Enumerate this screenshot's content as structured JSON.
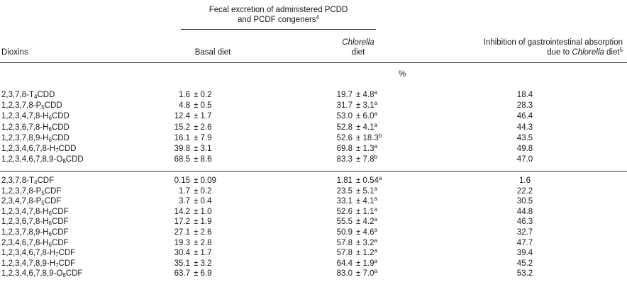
{
  "header": {
    "fecal_group_line1": "Fecal excretion of administered PCDD",
    "fecal_group_line2": "and PCDF congeners",
    "fecal_group_footnote": "4",
    "col_dioxins": "Dioxins",
    "col_basal": "Basal diet",
    "col_chlorella_line1": "Chlorella",
    "col_chlorella_line2": "diet",
    "col_inhibition_line1": "Inhibition of gastrointestinal absorption",
    "col_inhibition_line2_prefix": "due to ",
    "col_inhibition_line2_italic": "Chlorella",
    "col_inhibition_line2_suffix": " diet",
    "col_inhibition_footnote": "5",
    "unit": "%"
  },
  "pcdd_rows": [
    {
      "pre": "2,3,7,8-T",
      "sub": "4",
      "post": "CDD",
      "basal_mean": "1.6",
      "basal_sd": "± 0.2",
      "chl_mean": "19.7",
      "chl_sd": "± 4.8",
      "chl_sup": "a",
      "inhibition": "18.4"
    },
    {
      "pre": "1,2,3,7,8-P",
      "sub": "5",
      "post": "CDD",
      "basal_mean": "4.8",
      "basal_sd": "± 0.5",
      "chl_mean": "31.7",
      "chl_sd": "± 3.1",
      "chl_sup": "a",
      "inhibition": "28.3"
    },
    {
      "pre": "1,2,3,4,7,8-H",
      "sub": "6",
      "post": "CDD",
      "basal_mean": "12.4",
      "basal_sd": "± 1.7",
      "chl_mean": "53.0",
      "chl_sd": "± 6.0",
      "chl_sup": "a",
      "inhibition": "46.4"
    },
    {
      "pre": "1,2,3,6,7,8-H",
      "sub": "6",
      "post": "CDD",
      "basal_mean": "15.2",
      "basal_sd": "± 2.6",
      "chl_mean": "52.8",
      "chl_sd": "± 4.1",
      "chl_sup": "a",
      "inhibition": "44.3"
    },
    {
      "pre": "1,2,3,7,8,9-H",
      "sub": "6",
      "post": "CDD",
      "basal_mean": "16.1",
      "basal_sd": "± 7.9",
      "chl_mean": "52.6",
      "chl_sd": "± 18.3",
      "chl_sup": "b",
      "inhibition": "43.5"
    },
    {
      "pre": "1,2,3,4,6,7,8-H",
      "sub": "7",
      "post": "CDD",
      "basal_mean": "39.8",
      "basal_sd": "± 3.1",
      "chl_mean": "69.8",
      "chl_sd": "± 1.3",
      "chl_sup": "a",
      "inhibition": "49.8"
    },
    {
      "pre": "1,2,3,4,6,7,8,9-O",
      "sub": "8",
      "post": "CDD",
      "basal_mean": "68.5",
      "basal_sd": "± 8.6",
      "chl_mean": "83.3",
      "chl_sd": "± 7.8",
      "chl_sup": "b",
      "inhibition": "47.0"
    }
  ],
  "pcdf_rows": [
    {
      "pre": "2,3,7,8-T",
      "sub": "4",
      "post": "CDF",
      "basal_mean": "0.15",
      "basal_sd": "± 0.09",
      "chl_mean": "1.81",
      "chl_sd": "± 0.54",
      "chl_sup": "a",
      "inhibition": "1.6"
    },
    {
      "pre": "1,2,3,7,8-P",
      "sub": "5",
      "post": "CDF",
      "basal_mean": "1.7",
      "basal_sd": "± 0.2",
      "chl_mean": "23.5",
      "chl_sd": "± 5.1",
      "chl_sup": "a",
      "inhibition": "22.2"
    },
    {
      "pre": "2,3,4,7,8-P",
      "sub": "5",
      "post": "CDF",
      "basal_mean": "3.7",
      "basal_sd": "± 0.4",
      "chl_mean": "33.1",
      "chl_sd": "± 4.1",
      "chl_sup": "a",
      "inhibition": "30.5"
    },
    {
      "pre": "1,2,3,4,7,8-H",
      "sub": "6",
      "post": "CDF",
      "basal_mean": "14.2",
      "basal_sd": "± 1.0",
      "chl_mean": "52.6",
      "chl_sd": "± 1.1",
      "chl_sup": "a",
      "inhibition": "44.8"
    },
    {
      "pre": "1,2,3,6,7,8-H",
      "sub": "6",
      "post": "CDF",
      "basal_mean": "17.2",
      "basal_sd": "± 1.9",
      "chl_mean": "55.5",
      "chl_sd": "± 4.2",
      "chl_sup": "a",
      "inhibition": "46.3"
    },
    {
      "pre": "1,2,3,7,8,9-H",
      "sub": "6",
      "post": "CDF",
      "basal_mean": "27.1",
      "basal_sd": "± 2.6",
      "chl_mean": "50.9",
      "chl_sd": "± 4.6",
      "chl_sup": "a",
      "inhibition": "32.7"
    },
    {
      "pre": "2,3,4,6,7,8-H",
      "sub": "6",
      "post": "CDF",
      "basal_mean": "19.3",
      "basal_sd": "± 2.8",
      "chl_mean": "57.8",
      "chl_sd": "± 3.2",
      "chl_sup": "a",
      "inhibition": "47.7"
    },
    {
      "pre": "1,2,3,4,6,7,8-H",
      "sub": "7",
      "post": "CDF",
      "basal_mean": "30.4",
      "basal_sd": "± 1.7",
      "chl_mean": "57.8",
      "chl_sd": "± 1.2",
      "chl_sup": "a",
      "inhibition": "39.4"
    },
    {
      "pre": "1,2,3,4,7,8,9-H",
      "sub": "7",
      "post": "CDF",
      "basal_mean": "35.1",
      "basal_sd": "± 3.2",
      "chl_mean": "64.4",
      "chl_sd": "± 1.9",
      "chl_sup": "a",
      "inhibition": "45.2"
    },
    {
      "pre": "1,2,3,4,6,7,8,9-O",
      "sub": "8",
      "post": "CDF",
      "basal_mean": "63.7",
      "basal_sd": "± 6.9",
      "chl_mean": "83.0",
      "chl_sd": "± 7.0",
      "chl_sup": "a",
      "inhibition": "53.2"
    }
  ]
}
